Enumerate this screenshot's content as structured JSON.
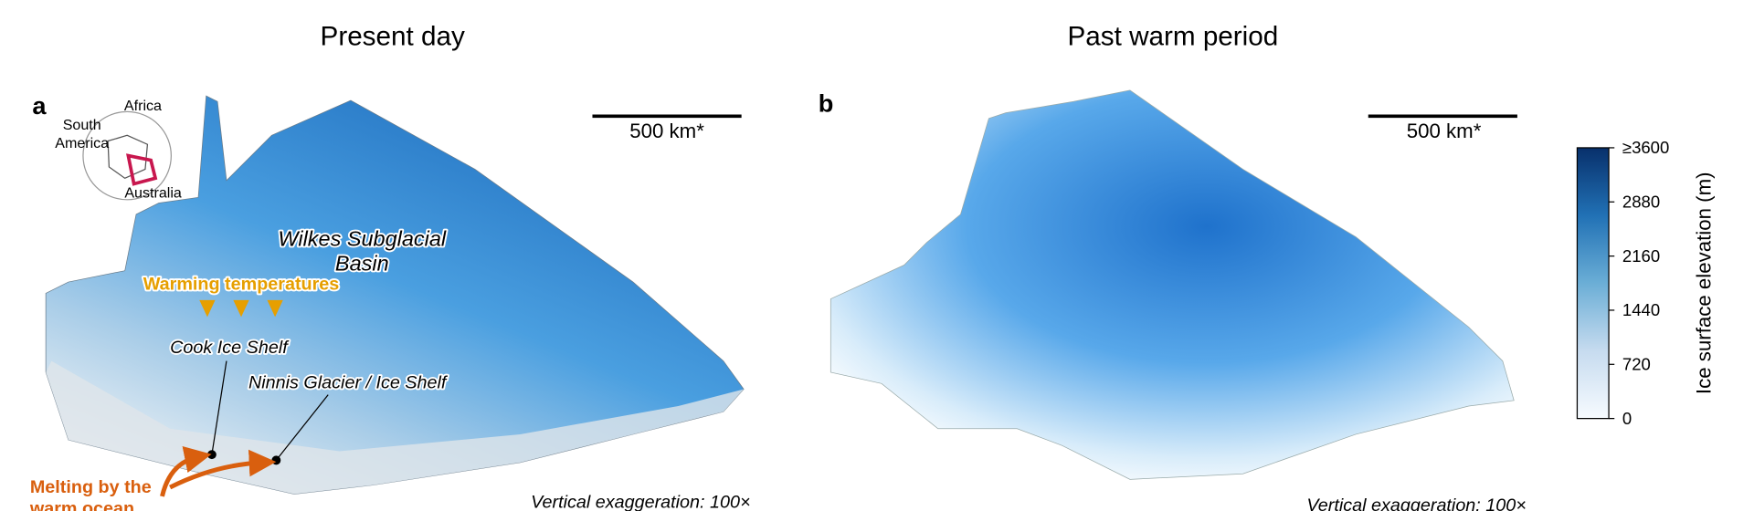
{
  "panels": [
    {
      "label": "a",
      "title": "Present day",
      "scale_bar": "500 km*",
      "exaggeration": "Vertical exaggeration: 100×",
      "inset": {
        "africa": "Africa",
        "south_america": [
          "South",
          "America"
        ],
        "australia": "Australia"
      },
      "basin": [
        "Wilkes Subglacial",
        "Basin"
      ],
      "warming": "Warming temperatures",
      "cook": "Cook Ice Shelf",
      "ninnis": "Ninnis Glacier / Ice Shelf",
      "melting": [
        "Melting by the",
        "warm ocean"
      ]
    },
    {
      "label": "b",
      "title": "Past warm period",
      "scale_bar": "500 km*",
      "exaggeration": "Vertical exaggeration: 100×"
    }
  ],
  "colorbar": {
    "label": "Ice surface elevation (m)",
    "lim": [
      0,
      3600
    ],
    "ticks": [
      {
        "value": 3600,
        "label": "≥3600"
      },
      2880,
      2160,
      1440,
      720,
      0
    ]
  }
}
